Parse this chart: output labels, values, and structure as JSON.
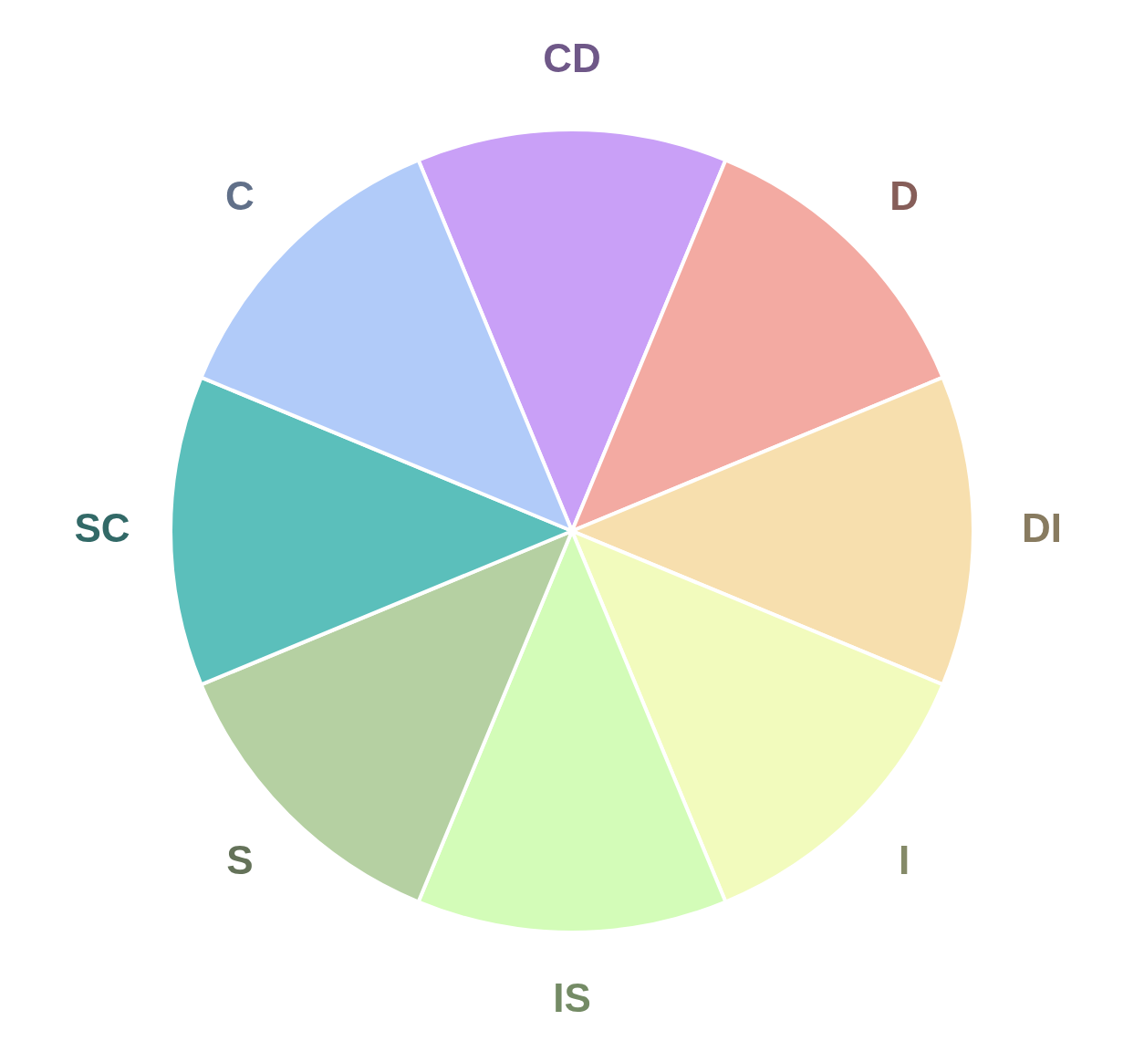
{
  "chart_data": {
    "type": "pie",
    "categories": [
      "CD",
      "D",
      "DI",
      "I",
      "IS",
      "S",
      "SC",
      "C"
    ],
    "values": [
      12.5,
      12.5,
      12.5,
      12.5,
      12.5,
      12.5,
      12.5,
      12.5
    ],
    "colors": [
      "#c9a0f7",
      "#f3aaa2",
      "#f7dfae",
      "#f2fbbd",
      "#d3fcb8",
      "#b5d0a2",
      "#5bbfbb",
      "#b1cbf9"
    ],
    "legend": false
  }
}
